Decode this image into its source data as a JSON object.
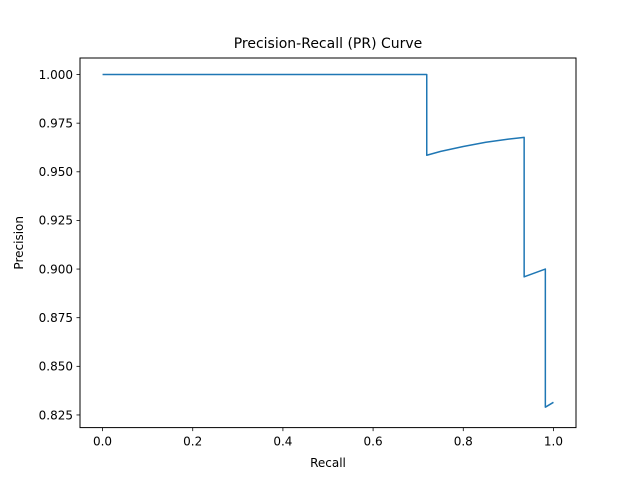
{
  "chart_data": {
    "type": "line",
    "title": "Precision-Recall (PR) Curve",
    "xlabel": "Recall",
    "ylabel": "Precision",
    "xlim": [
      -0.05,
      1.05
    ],
    "ylim": [
      0.8185,
      1.0085
    ],
    "xticks": [
      0.0,
      0.2,
      0.4,
      0.6,
      0.8,
      1.0
    ],
    "xtick_labels": [
      "0.0",
      "0.2",
      "0.4",
      "0.6",
      "0.8",
      "1.0"
    ],
    "yticks": [
      0.825,
      0.85,
      0.875,
      0.9,
      0.925,
      0.95,
      0.975,
      1.0
    ],
    "ytick_labels": [
      "0.825",
      "0.850",
      "0.875",
      "0.900",
      "0.925",
      "0.950",
      "0.975",
      "1.000"
    ],
    "grid": false,
    "series": [
      {
        "color": "#1f77b4",
        "x": [
          0.0,
          0.719,
          0.719,
          0.75,
          0.8,
          0.85,
          0.9,
          0.935,
          0.935,
          0.982,
          0.982,
          1.0
        ],
        "y": [
          1.0,
          1.0,
          0.9585,
          0.9605,
          0.963,
          0.9652,
          0.9668,
          0.9677,
          0.896,
          0.9,
          0.829,
          0.8315
        ]
      }
    ]
  }
}
